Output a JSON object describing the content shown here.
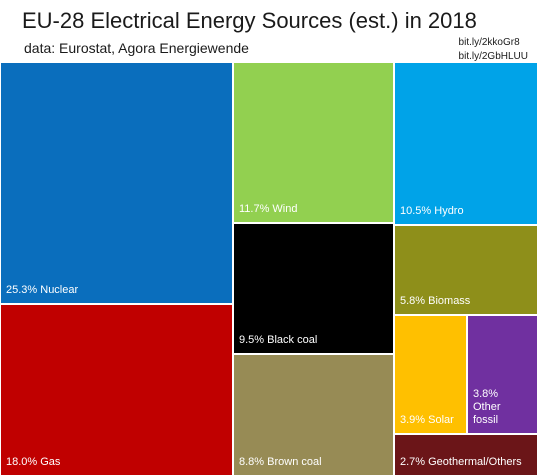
{
  "header": {
    "title": "EU-28 Electrical Energy Sources (est.) in 2018",
    "subtitle": "data: Eurostat, Agora Energiewende",
    "links": [
      "bit.ly/2kkoGr8",
      "bit.ly/2GbHLUU"
    ]
  },
  "chart_data": {
    "type": "treemap",
    "title": "EU-28 Electrical Energy Sources (est.) in 2018",
    "subtitle": "data: Eurostat, Agora Energiewende",
    "unit": "%",
    "items": [
      {
        "name": "Nuclear",
        "value": 25.3,
        "label": "25.3% Nuclear",
        "color": "#0a6ebd"
      },
      {
        "name": "Gas",
        "value": 18.0,
        "label": "18.0% Gas",
        "color": "#c00000"
      },
      {
        "name": "Wind",
        "value": 11.7,
        "label": "11.7% Wind",
        "color": "#92d050"
      },
      {
        "name": "Black coal",
        "value": 9.5,
        "label": "9.5% Black coal",
        "color": "#000000"
      },
      {
        "name": "Brown coal",
        "value": 8.8,
        "label": "8.8% Brown coal",
        "color": "#978b55"
      },
      {
        "name": "Hydro",
        "value": 10.5,
        "label": "10.5% Hydro",
        "color": "#00a3e8"
      },
      {
        "name": "Biomass",
        "value": 5.8,
        "label": "5.8% Biomass",
        "color": "#8e8f1a"
      },
      {
        "name": "Solar",
        "value": 3.9,
        "label": "3.9% Solar",
        "color": "#ffc000"
      },
      {
        "name": "Other fossil",
        "value": 3.8,
        "label": "3.8% Other fossil",
        "color": "#7030a0"
      },
      {
        "name": "Geothermal/Others",
        "value": 2.7,
        "label": "2.7% Geothermal/Others",
        "color": "#6b1518"
      }
    ]
  }
}
